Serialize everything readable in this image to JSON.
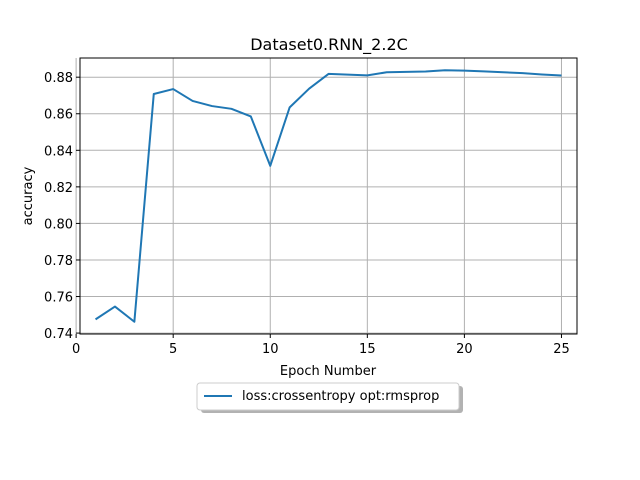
{
  "chart_data": {
    "type": "line",
    "title": "Dataset0.RNN_2.2C",
    "xlabel": "Epoch Number",
    "ylabel": "accuracy",
    "xlim": [
      0.2,
      25.8
    ],
    "ylim": [
      0.7395,
      0.8905
    ],
    "xticks": [
      0,
      5,
      10,
      15,
      20,
      25
    ],
    "yticks": [
      0.74,
      0.76,
      0.78,
      0.8,
      0.82,
      0.84,
      0.86,
      0.88
    ],
    "ytick_labels": [
      "0.74",
      "0.76",
      "0.78",
      "0.80",
      "0.82",
      "0.84",
      "0.86",
      "0.88"
    ],
    "grid": true,
    "legend_position": "bottom-center",
    "series": [
      {
        "name": "loss:crossentropy opt:rmsprop",
        "color": "#1f77b4",
        "x": [
          1,
          2,
          3,
          4,
          5,
          6,
          7,
          8,
          9,
          10,
          11,
          12,
          13,
          14,
          15,
          16,
          17,
          18,
          19,
          20,
          21,
          22,
          23,
          24,
          25
        ],
        "y": [
          0.7475,
          0.7545,
          0.7462,
          0.8708,
          0.8735,
          0.867,
          0.8642,
          0.8627,
          0.8585,
          0.8315,
          0.8635,
          0.8737,
          0.8818,
          0.8814,
          0.881,
          0.8827,
          0.8829,
          0.8831,
          0.8838,
          0.8836,
          0.8832,
          0.8827,
          0.8822,
          0.8815,
          0.8809
        ]
      }
    ]
  }
}
